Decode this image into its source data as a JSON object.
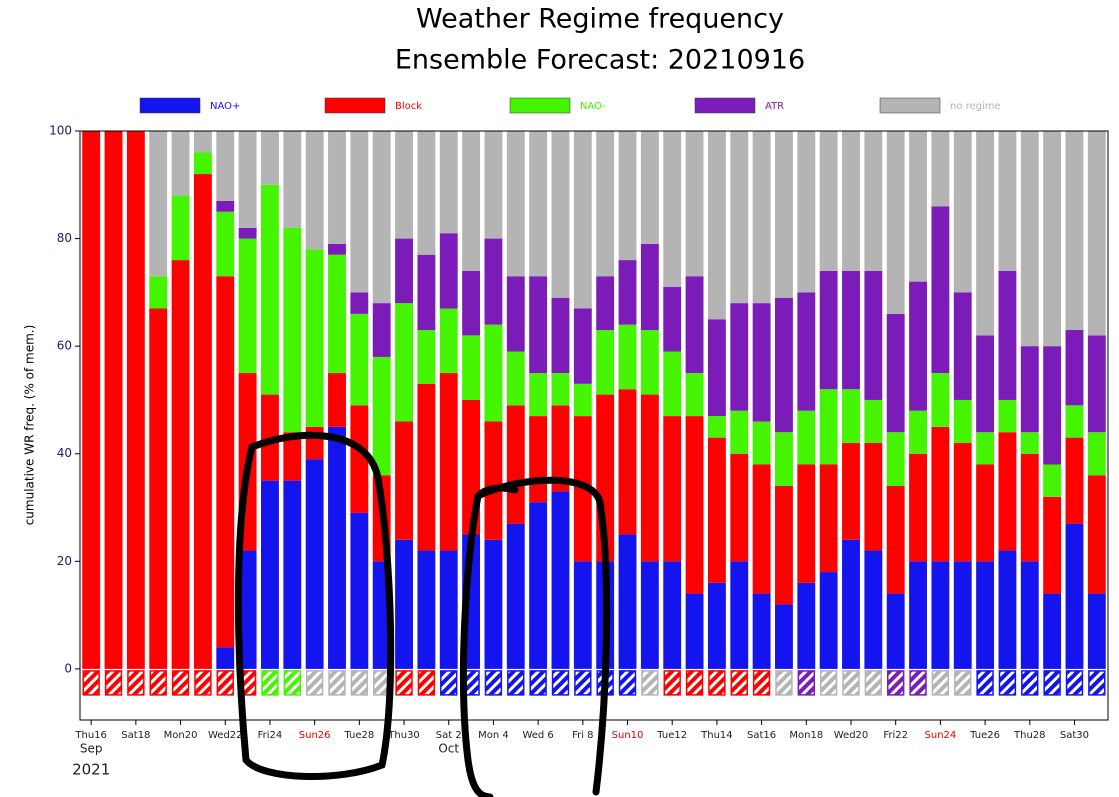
{
  "chart_data": {
    "type": "stacked-bar",
    "title": "Weather Regime frequency",
    "subtitle": "Ensemble Forecast: 20210916",
    "ylabel": "cumulative WR freq. (% of mem.)",
    "categories": [
      "Thu16",
      null,
      "Sat18",
      null,
      "Mon20",
      null,
      "Wed22",
      null,
      "Fri24",
      null,
      "Sun26",
      null,
      "Tue28",
      null,
      "Thu30",
      null,
      "Sat 2",
      null,
      "Mon 4",
      null,
      "Wed 6",
      null,
      "Fri 8",
      null,
      "Sun10",
      null,
      "Tue12",
      null,
      "Thu14",
      null,
      "Sat16",
      null,
      "Mon18",
      null,
      "Wed20",
      null,
      "Fri22",
      null,
      "Sun24",
      null,
      "Tue26",
      null,
      "Thu28",
      null,
      "Sat30",
      null
    ],
    "category_colors": [
      "#222222",
      null,
      "#222222",
      null,
      "#222222",
      null,
      "#222222",
      null,
      "#222222",
      null,
      "#e00000",
      null,
      "#222222",
      null,
      "#222222",
      null,
      "#222222",
      null,
      "#222222",
      null,
      "#222222",
      null,
      "#222222",
      null,
      "#e00000",
      null,
      "#222222",
      null,
      "#222222",
      null,
      "#222222",
      null,
      "#222222",
      null,
      "#222222",
      null,
      "#222222",
      null,
      "#e00000",
      null,
      "#222222",
      null,
      "#222222",
      null,
      "#222222",
      null
    ],
    "month_labels": [
      {
        "index": 0,
        "label": "Sep"
      },
      {
        "index": 16,
        "label": "Oct"
      }
    ],
    "year_label": "2021",
    "series": [
      {
        "name": "NAO+",
        "color": "#1414ee",
        "values": [
          0,
          0,
          0,
          0,
          0,
          0,
          4,
          22,
          35,
          35,
          39,
          45,
          29,
          20,
          24,
          22,
          22,
          25,
          24,
          27,
          31,
          33,
          20,
          20,
          25,
          20,
          20,
          14,
          16,
          20,
          14,
          12,
          16,
          18,
          24,
          22,
          14,
          20,
          20,
          20,
          20,
          22,
          20,
          14,
          27,
          14
        ]
      },
      {
        "name": "Block",
        "color": "#ff0000",
        "values": [
          100,
          100,
          100,
          67,
          76,
          92,
          69,
          33,
          16,
          9,
          6,
          10,
          20,
          16,
          22,
          31,
          33,
          25,
          22,
          22,
          16,
          16,
          27,
          31,
          27,
          31,
          27,
          33,
          27,
          20,
          24,
          22,
          22,
          20,
          18,
          20,
          20,
          20,
          25,
          22,
          18,
          22,
          20,
          18,
          16,
          22
        ]
      },
      {
        "name": "NAO-",
        "color": "#44f400",
        "values": [
          0,
          0,
          0,
          6,
          12,
          4,
          12,
          25,
          39,
          38,
          33,
          22,
          17,
          22,
          22,
          10,
          12,
          12,
          18,
          10,
          8,
          6,
          6,
          12,
          12,
          12,
          12,
          8,
          4,
          8,
          8,
          10,
          10,
          14,
          10,
          8,
          10,
          8,
          10,
          8,
          6,
          6,
          4,
          6,
          6,
          8
        ]
      },
      {
        "name": "ATR",
        "color": "#7b1cb8",
        "values": [
          0,
          0,
          0,
          0,
          0,
          0,
          2,
          2,
          0,
          0,
          0,
          2,
          4,
          10,
          12,
          14,
          14,
          12,
          16,
          14,
          18,
          14,
          14,
          10,
          12,
          16,
          12,
          18,
          18,
          20,
          22,
          25,
          22,
          22,
          22,
          24,
          22,
          24,
          31,
          20,
          18,
          24,
          16,
          22,
          14,
          18
        ]
      },
      {
        "name": "no regime",
        "color": "#b4b4b4",
        "values": [
          0,
          0,
          0,
          27,
          12,
          4,
          13,
          18,
          10,
          18,
          22,
          21,
          30,
          32,
          20,
          23,
          19,
          26,
          20,
          27,
          27,
          31,
          33,
          27,
          24,
          21,
          29,
          27,
          35,
          32,
          32,
          31,
          30,
          26,
          26,
          26,
          34,
          28,
          14,
          30,
          38,
          26,
          40,
          40,
          37,
          38
        ]
      }
    ],
    "dominant": [
      "Block",
      "Block",
      "Block",
      "Block",
      "Block",
      "Block",
      "Block",
      "Block",
      "NAO-",
      "NAO-",
      "no regime",
      "no regime",
      "no regime",
      "no regime",
      "Block",
      "Block",
      "NAO+",
      "NAO+",
      "NAO+",
      "NAO+",
      "NAO+",
      "NAO+",
      "NAO+",
      "NAO+",
      "NAO+",
      "no regime",
      "Block",
      "Block",
      "Block",
      "Block",
      "Block",
      "no regime",
      "ATR",
      "no regime",
      "no regime",
      "no regime",
      "ATR",
      "ATR",
      "no regime",
      "no regime",
      "NAO+",
      "NAO+",
      "NAO+",
      "NAO+",
      "NAO+",
      "NAO+"
    ],
    "ylim": [
      -9.5,
      100
    ],
    "yticks": [
      0,
      20,
      40,
      60,
      80,
      100
    ],
    "ytick_color": "#1a1a7a",
    "grid": false
  }
}
